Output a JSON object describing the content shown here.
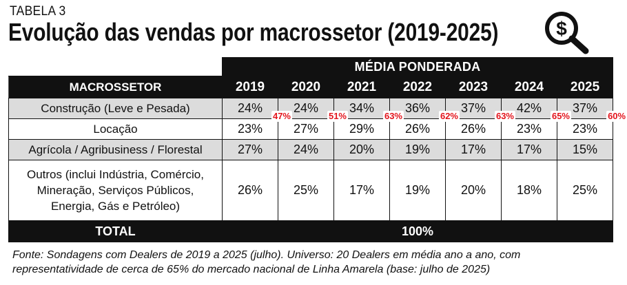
{
  "header": {
    "table_label": "TABELA 3",
    "title": "Evolução das vendas por macrossetor (2019-2025)",
    "icon": "dollar-search-icon"
  },
  "table": {
    "group_header": "MÉDIA PONDERADA",
    "col1_header": "MACROSSETOR",
    "years": [
      "2019",
      "2020",
      "2021",
      "2022",
      "2023",
      "2024",
      "2025"
    ],
    "rows": [
      {
        "label": [
          "Construção (Leve e Pesada)"
        ],
        "values": [
          "24%",
          "24%",
          "34%",
          "36%",
          "37%",
          "42%",
          "37%"
        ],
        "shaded": true
      },
      {
        "label": [
          "Locação"
        ],
        "values": [
          "23%",
          "27%",
          "29%",
          "26%",
          "26%",
          "23%",
          "23%"
        ],
        "shaded": false
      },
      {
        "label": [
          "Agrícola / Agribusiness / Florestal"
        ],
        "values": [
          "27%",
          "24%",
          "20%",
          "19%",
          "17%",
          "17%",
          "15%"
        ],
        "shaded": true
      },
      {
        "label": [
          "Outros (inclui Indústria, Comércio,",
          "Mineração, Serviços Públicos,",
          "Energia, Gás e Petróleo)"
        ],
        "values": [
          "26%",
          "25%",
          "17%",
          "19%",
          "20%",
          "18%",
          "25%"
        ],
        "shaded": false
      }
    ],
    "totals_badges": [
      "47%",
      "51%",
      "63%",
      "62%",
      "63%",
      "65%",
      "60%"
    ],
    "total_label": "TOTAL",
    "total_value": "100%"
  },
  "source": [
    "Fonte: Sondagens com Dealers de 2019 a 2025 (julho). Universo: 20 Dealers em média ano a ano, com",
    "representatividade de cerca de 65% do mercado nacional de Linha Amarela (base: julho de 2025)"
  ],
  "colors": {
    "header_bg": "#111111",
    "shade": "#dcdcdc",
    "badge": "#e3141c"
  }
}
